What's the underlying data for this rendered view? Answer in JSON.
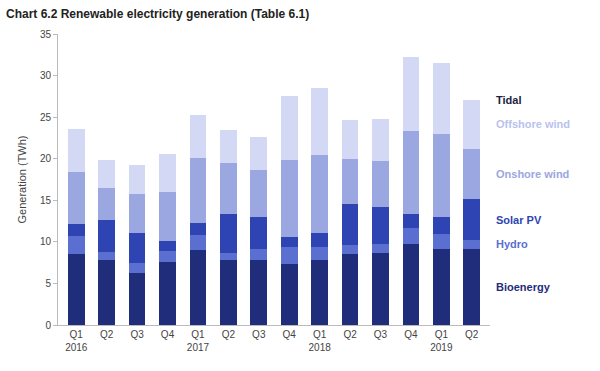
{
  "chart_data": {
    "type": "bar",
    "stacked": true,
    "title": "Chart 6.2 Renewable electricity generation (Table 6.1)",
    "y_label": "Generation (TWh)",
    "categories": [
      "Q1\n2016",
      "Q2",
      "Q3",
      "Q4",
      "Q1\n2017",
      "Q2",
      "Q3",
      "Q4",
      "Q1\n2018",
      "Q2",
      "Q3",
      "Q4",
      "Q1\n2019",
      "Q2"
    ],
    "ylim": [
      0,
      35
    ],
    "yticks": [
      0,
      5,
      10,
      15,
      20,
      25,
      30,
      35
    ],
    "grid": false,
    "legend": "right",
    "series": [
      {
        "name": "Bioenergy",
        "color": "#1f2d7a",
        "values": [
          8.5,
          7.8,
          6.2,
          7.6,
          9.0,
          7.8,
          7.8,
          7.3,
          7.8,
          8.5,
          8.7,
          9.7,
          9.1,
          9.2
        ]
      },
      {
        "name": "Hydro",
        "color": "#5a6fcf",
        "values": [
          2.2,
          1.0,
          1.2,
          1.3,
          1.8,
          0.9,
          1.3,
          2.1,
          1.6,
          1.1,
          1.0,
          2.0,
          1.8,
          1.0
        ]
      },
      {
        "name": "Solar PV",
        "color": "#2e44b3",
        "values": [
          1.4,
          3.8,
          3.7,
          1.2,
          1.5,
          4.6,
          3.9,
          1.2,
          1.7,
          4.9,
          4.5,
          1.7,
          2.1,
          4.9
        ]
      },
      {
        "name": "Onshore wind",
        "color": "#9aa7e0",
        "values": [
          6.3,
          3.9,
          4.6,
          5.9,
          7.8,
          6.2,
          5.6,
          9.2,
          9.4,
          5.5,
          5.5,
          9.9,
          10.0,
          6.1
        ]
      },
      {
        "name": "Offshore wind",
        "color": "#d3d9f4",
        "values": [
          5.2,
          3.3,
          3.6,
          4.6,
          5.2,
          4.0,
          4.0,
          7.8,
          8.0,
          4.7,
          5.1,
          8.9,
          8.5,
          5.9
        ]
      },
      {
        "name": "Tidal",
        "color": "#1a2340",
        "values": [
          0,
          0,
          0,
          0,
          0,
          0,
          0,
          0,
          0,
          0,
          0,
          0,
          0,
          0
        ]
      }
    ]
  }
}
